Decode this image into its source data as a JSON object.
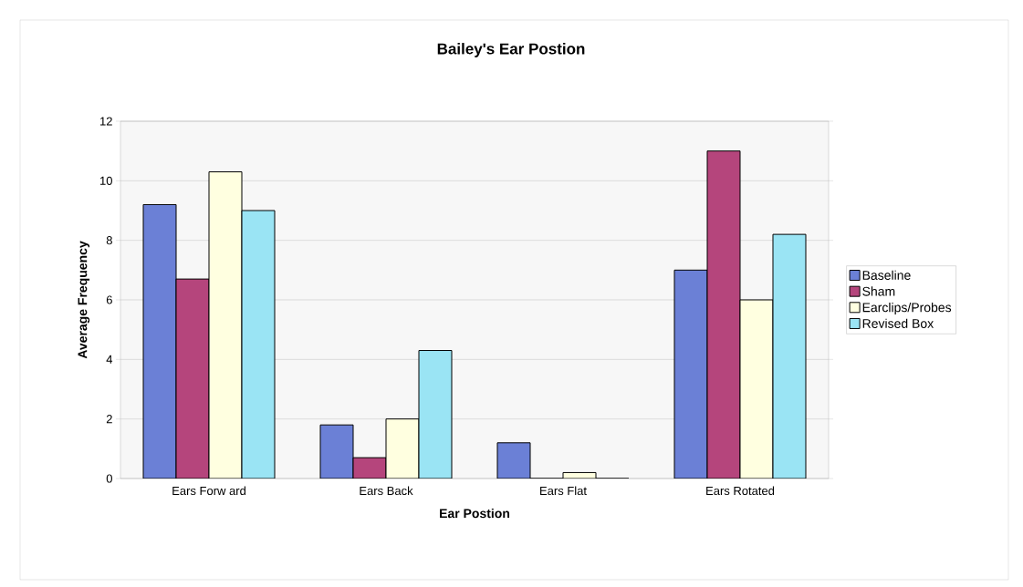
{
  "chart_data": {
    "type": "bar",
    "title": "Bailey's Ear Postion",
    "xlabel": "Ear Postion",
    "ylabel": "Average Frequency",
    "categories": [
      "Ears Forw ard",
      "Ears Back",
      "Ears Flat",
      "Ears Rotated"
    ],
    "series": [
      {
        "name": "Baseline",
        "color": "#6b80d6",
        "values": [
          9.2,
          1.8,
          1.2,
          7.0
        ]
      },
      {
        "name": "Sham",
        "color": "#b5457c",
        "values": [
          6.7,
          0.7,
          0,
          11.0
        ]
      },
      {
        "name": "Earclips/Probes",
        "color": "#ffffe0",
        "values": [
          10.3,
          2.0,
          0.2,
          6.0
        ]
      },
      {
        "name": "Revised Box",
        "color": "#9ae4f4",
        "values": [
          9.0,
          4.3,
          0,
          8.2
        ]
      }
    ],
    "ylim": [
      0,
      12
    ],
    "yticks": [
      0,
      2,
      4,
      6,
      8,
      10,
      12
    ],
    "grid": "y",
    "legend": "right"
  }
}
